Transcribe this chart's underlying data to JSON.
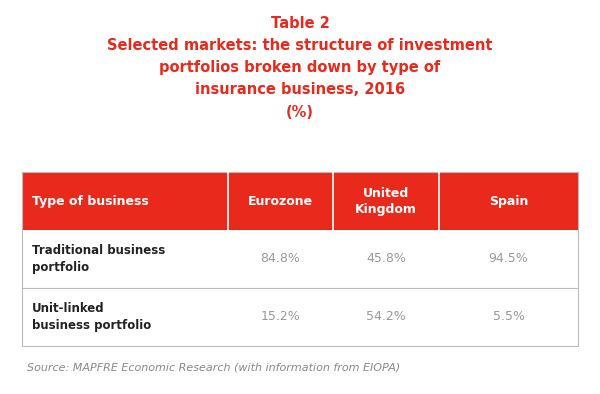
{
  "title_line1": "Table 2",
  "title_line2": "Selected markets: the structure of investment",
  "title_line3": "portfolios broken down by type of",
  "title_line4": "insurance business, 2016",
  "title_line5": "(%)",
  "title_color": "#E8291C",
  "header_bg_color": "#E8291C",
  "header_text_color": "#FFFFFF",
  "header_cols": [
    "Type of business",
    "Eurozone",
    "United\nKingdom",
    "Spain"
  ],
  "row1_label": "Traditional business\nportfolio",
  "row1_values": [
    "84.8%",
    "45.8%",
    "94.5%"
  ],
  "row2_label": "Unit-linked\nbusiness portfolio",
  "row2_values": [
    "15.2%",
    "54.2%",
    "5.5%"
  ],
  "data_text_color": "#999999",
  "label_text_color": "#222222",
  "source_text": "Source: MAPFRE Economic Research (with information from EIOPA)",
  "source_color": "#888888",
  "bg_color": "#FFFFFF",
  "table_border_color": "#BBBBBB",
  "col_bounds": [
    0.0,
    0.37,
    0.56,
    0.75,
    1.0
  ]
}
